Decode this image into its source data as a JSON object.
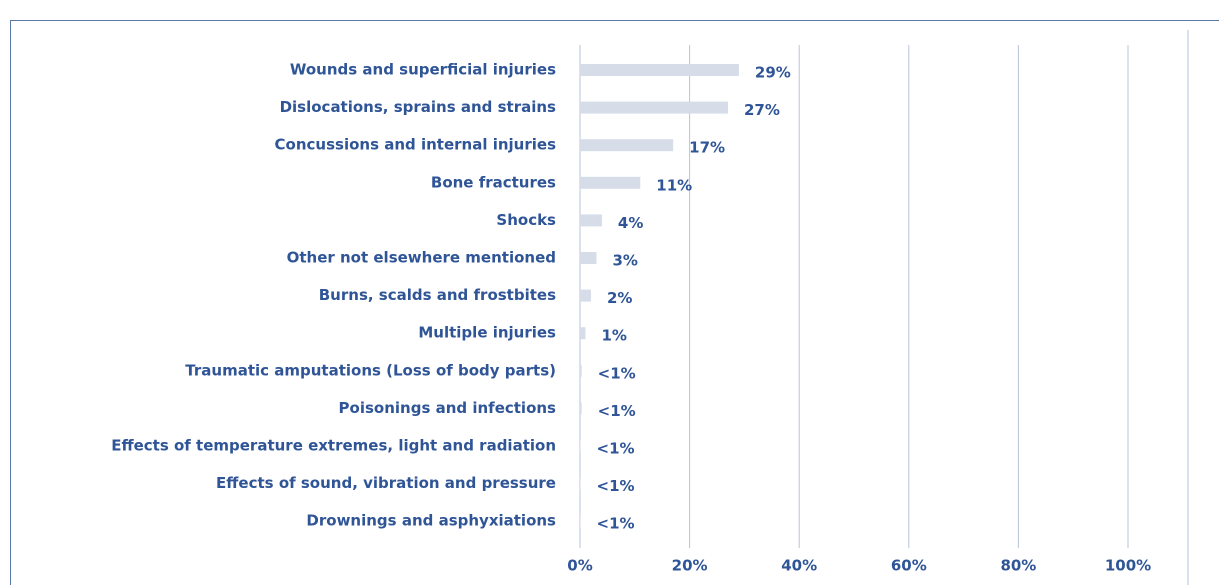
{
  "chart_data": {
    "type": "barh",
    "categories": [
      "Wounds and superficial injuries",
      "Dislocations, sprains and strains",
      "Concussions and internal injuries",
      "Bone fractures",
      "Shocks",
      "Other not elsewhere mentioned",
      "Burns, scalds and frostbites",
      "Multiple injuries",
      "Traumatic amputations (Loss of body parts)",
      "Poisonings and infections",
      "Effects of temperature extremes, light and radiation",
      "Effects of sound, vibration and pressure",
      "Drownings and asphyxiations"
    ],
    "values": [
      29,
      27,
      17,
      11,
      4,
      3,
      2,
      1,
      0.3,
      0.3,
      0.1,
      0.1,
      0.1
    ],
    "value_labels": [
      "29%",
      "27%",
      "17%",
      "11%",
      "4%",
      "3%",
      "2%",
      "1%",
      "<1%",
      "<1%",
      "<1%",
      "<1%",
      "<1%"
    ],
    "color": "#d6dce8",
    "xlim": [
      0,
      100
    ],
    "xticks": [
      {
        "value": 0,
        "label": "0%"
      },
      {
        "value": 20,
        "label": "20%"
      },
      {
        "value": 40,
        "label": "40%"
      },
      {
        "value": 60,
        "label": "60%"
      },
      {
        "value": 80,
        "label": "80%"
      },
      {
        "value": 100,
        "label": "100%"
      }
    ],
    "grid": true
  }
}
